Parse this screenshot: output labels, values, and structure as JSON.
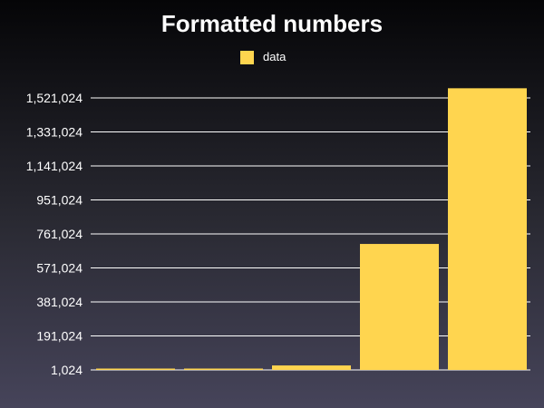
{
  "chart_data": {
    "type": "bar",
    "title": "Formatted numbers",
    "xlabel": "",
    "ylabel": "",
    "categories": [
      "",
      "",
      "",
      "",
      ""
    ],
    "series": [
      {
        "name": "data",
        "values": [
          2024,
          1024,
          26000,
          705000,
          1575000
        ]
      }
    ],
    "yticks": [
      1024,
      191024,
      381024,
      571024,
      761024,
      951024,
      1141024,
      1331024,
      1521024
    ],
    "ytick_labels": [
      "1,024",
      "191,024",
      "381,024",
      "571,024",
      "761,024",
      "951,024",
      "1,141,024",
      "1,331,024",
      "1,521,024"
    ],
    "ylim": [
      1024,
      1600000
    ],
    "grid": true,
    "legend": "top-center",
    "colors": {
      "bar": "#ffd54f",
      "grid": "#ffffff",
      "text": "#ffffff"
    }
  }
}
